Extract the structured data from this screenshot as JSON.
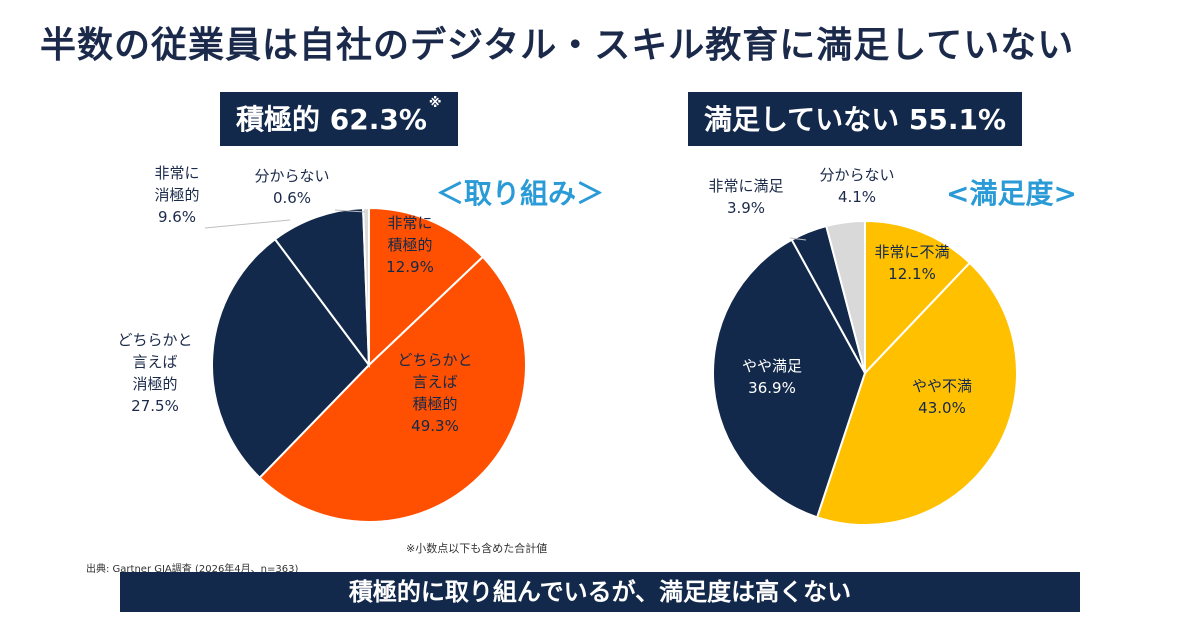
{
  "title": "半数の従業員は自社のデジタル・スキル教育に満足していない",
  "badges": {
    "left": {
      "text": "積極的  62.3%",
      "mark": "※"
    },
    "right": {
      "text": "満足していない  55.1%"
    }
  },
  "footnote": "※小数点以下も含めた合計値",
  "source": "出典: Gartner GIA調査 (2026年4月、n=363)",
  "banner": "積極的に取り組んでいるが、満足度は高くない",
  "chart_data": [
    {
      "type": "pie",
      "title": "＜取り組み＞",
      "slices": [
        {
          "label_lines": [
            "非常に",
            "積極的"
          ],
          "value": 12.9,
          "value_text": "12.9%",
          "color": "#fe5000"
        },
        {
          "label_lines": [
            "どちらかと",
            "言えば",
            "積極的"
          ],
          "value": 49.3,
          "value_text": "49.3%",
          "color": "#fe5000"
        },
        {
          "label_lines": [
            "どちらかと",
            "言えば",
            "消極的"
          ],
          "value": 27.5,
          "value_text": "27.5%",
          "color": "#13294b"
        },
        {
          "label_lines": [
            "非常に",
            "消極的"
          ],
          "value": 9.6,
          "value_text": "9.6%",
          "color": "#13294b"
        },
        {
          "label_lines": [
            "分からない"
          ],
          "value": 0.6,
          "value_text": "0.6%",
          "color": "#d9d9d9"
        }
      ]
    },
    {
      "type": "pie",
      "title": "<満足度>",
      "slices": [
        {
          "label_lines": [
            "非常に不満"
          ],
          "value": 12.1,
          "value_text": "12.1%",
          "color": "#ffc000"
        },
        {
          "label_lines": [
            "やや不満"
          ],
          "value": 43.0,
          "value_text": "43.0%",
          "color": "#ffc000"
        },
        {
          "label_lines": [
            "やや満足"
          ],
          "value": 36.9,
          "value_text": "36.9%",
          "color": "#13294b"
        },
        {
          "label_lines": [
            "非常に満足"
          ],
          "value": 3.9,
          "value_text": "3.9%",
          "color": "#13294b"
        },
        {
          "label_lines": [
            "分からない"
          ],
          "value": 4.1,
          "value_text": "4.1%",
          "color": "#d9d9d9"
        }
      ]
    }
  ]
}
